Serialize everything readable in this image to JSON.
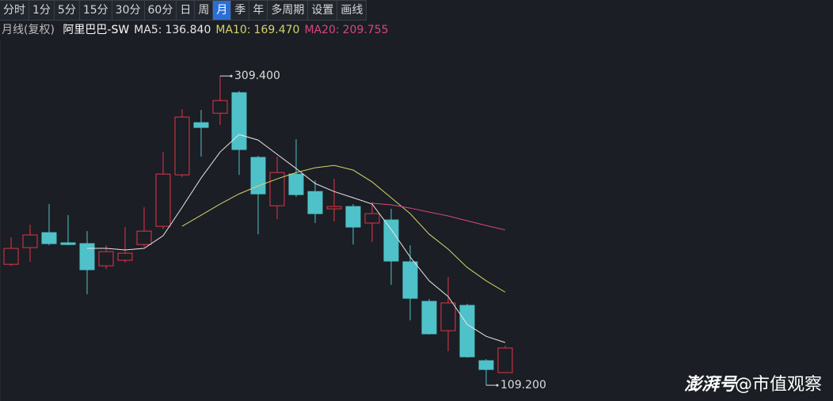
{
  "toolbar": {
    "buttons": [
      "分时",
      "1分",
      "5分",
      "15分",
      "30分",
      "60分",
      "日",
      "周",
      "月",
      "季",
      "年",
      "多周期",
      "设置",
      "画线"
    ],
    "active": 8
  },
  "header": {
    "period": "月线(复权)",
    "stock": "阿里巴巴-SW"
  },
  "watermark": {
    "brand": "澎湃号",
    "account": "@市值观察"
  },
  "chart_data": {
    "type": "candlestick",
    "up_color": "#e0364a",
    "down_color": "#4fc1c9",
    "ylim": [
      99,
      333
    ],
    "open": [
      187.5,
      198.3,
      208.0,
      201.4,
      200.9,
      186.5,
      190.1,
      200.3,
      212.1,
      245.4,
      279.2,
      285.3,
      298.6,
      256.7,
      225.4,
      245.9,
      234.6,
      223.4,
      224.9,
      214.2,
      216.2,
      189.1,
      163.5,
      144.5,
      160.9,
      125.1,
      117.4
    ],
    "high": [
      205.0,
      213.1,
      226.5,
      219.3,
      209.0,
      199.8,
      211.6,
      224.4,
      260.2,
      287.9,
      287.4,
      309.4,
      299.7,
      257.7,
      257.2,
      268.4,
      241.8,
      242.8,
      226.5,
      228.0,
      223.4,
      199.8,
      165.0,
      179.4,
      162.0,
      126.1,
      134.8
    ],
    "low": [
      186.5,
      189.1,
      199.8,
      199.8,
      168.1,
      184.5,
      188.6,
      198.8,
      210.1,
      243.9,
      257.2,
      277.7,
      245.4,
      207.0,
      216.7,
      231.1,
      214.2,
      215.2,
      200.3,
      201.9,
      174.2,
      151.2,
      142.0,
      131.2,
      127.1,
      109.2,
      117.4
    ],
    "close": [
      197.8,
      206.5,
      200.9,
      200.3,
      184.0,
      195.7,
      194.7,
      209.0,
      245.9,
      282.8,
      276.1,
      293.5,
      261.8,
      233.1,
      246.9,
      232.6,
      220.3,
      224.9,
      211.6,
      220.3,
      189.6,
      165.5,
      142.5,
      162.5,
      127.6,
      119.4,
      133.3
    ],
    "series": [
      {
        "name": "MA5:",
        "color": "#e8e8e8",
        "last_label": "136.840",
        "values": [
          null,
          null,
          null,
          null,
          197.8,
          197.8,
          196.8,
          197.8,
          206.0,
          224.4,
          243.4,
          260.2,
          271.5,
          267.9,
          258.7,
          249.5,
          239.8,
          234.6,
          230.6,
          226.5,
          210.1,
          192.2,
          176.8,
          166.6,
          148.6,
          140.9,
          136.84
        ]
      },
      {
        "name": "MA10:",
        "color": "#d4d46a",
        "last_label": "169.470",
        "values": [
          null,
          null,
          null,
          null,
          null,
          null,
          null,
          null,
          null,
          212.1,
          219.3,
          226.5,
          233.1,
          238.2,
          242.8,
          246.9,
          250.0,
          251.5,
          248.5,
          240.8,
          230.6,
          220.3,
          207.0,
          197.3,
          185.5,
          176.8,
          169.47
        ]
      },
      {
        "name": "MA20:",
        "color": "#d9467f",
        "last_label": "209.755",
        "values": [
          null,
          null,
          null,
          null,
          null,
          null,
          null,
          null,
          null,
          null,
          null,
          null,
          null,
          null,
          null,
          null,
          null,
          null,
          null,
          227.0,
          226.0,
          223.9,
          221.3,
          218.8,
          215.7,
          212.6,
          209.755
        ]
      }
    ],
    "annotations": [
      {
        "index": 11,
        "value": 309.4,
        "label": "309.400",
        "side": "high"
      },
      {
        "index": 25,
        "value": 109.2,
        "label": "109.200",
        "side": "low"
      }
    ]
  }
}
